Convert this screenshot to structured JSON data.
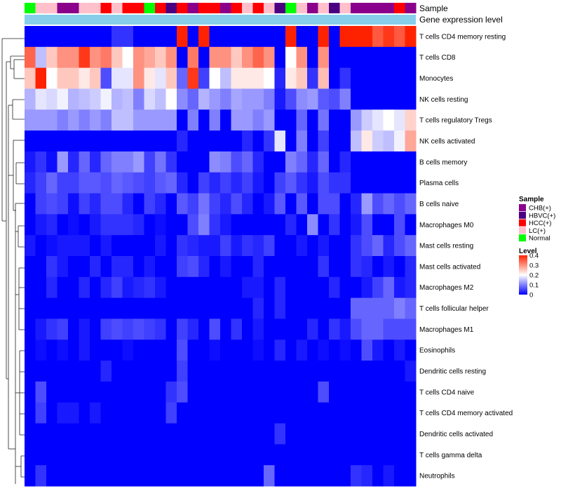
{
  "chart_data": {
    "type": "heatmap",
    "title": "",
    "annotation_track_labels": [
      "Sample",
      "Gene expression level"
    ],
    "sample_groups": [
      {
        "name": "CHB(+)",
        "color": "#8B008B"
      },
      {
        "name": "HBVC(+)",
        "color": "#4B0082"
      },
      {
        "name": "HCC(+)",
        "color": "#FF0000"
      },
      {
        "name": "LC(+)",
        "color": "#FFC0CB"
      },
      {
        "name": "Normal",
        "color": "#00FF00"
      }
    ],
    "sample_legend_title": "Sample",
    "level_legend_title": "Level",
    "level_ticks": [
      0.4,
      0.3,
      0.2,
      0.1,
      0
    ],
    "value_range": [
      0,
      0.4
    ],
    "gene_level_color": "#87CEEB",
    "samples": [
      "Normal",
      "LC(+)",
      "LC(+)",
      "CHB(+)",
      "CHB(+)",
      "LC(+)",
      "LC(+)",
      "HCC(+)",
      "LC(+)",
      "HCC(+)",
      "HCC(+)",
      "Normal",
      "HCC(+)",
      "HBVC(+)",
      "HCC(+)",
      "CHB(+)",
      "HCC(+)",
      "HCC(+)",
      "CHB(+)",
      "HCC(+)",
      "LC(+)",
      "HCC(+)",
      "LC(+)",
      "HBVC(+)",
      "Normal",
      "LC(+)",
      "CHB(+)",
      "LC(+)",
      "HBVC(+)",
      "LC(+)",
      "CHB(+)",
      "CHB(+)",
      "CHB(+)",
      "CHB(+)",
      "HCC(+)",
      "CHB(+)"
    ],
    "rows": [
      "T cells CD4 memory resting",
      "T cells CD8",
      "Monocytes",
      "NK cells resting",
      "T cells regulatory  Tregs",
      "NK cells activated",
      "B cells memory",
      "Plasma cells",
      "B cells naive",
      "Macrophages M0",
      "Mast cells resting",
      "Mast cells activated",
      "Macrophages M2",
      "T cells follicular helper",
      "Macrophages M1",
      "Eosinophils",
      "Dendritic cells resting",
      "T cells CD4 naive",
      "T cells CD4 memory activated",
      "Dendritic cells activated",
      "T cells gamma delta",
      "Neutrophils"
    ],
    "values": [
      [
        0,
        0,
        0,
        0,
        0,
        0,
        0,
        0,
        0.04,
        0.04,
        0,
        0,
        0,
        0,
        0.4,
        0,
        0.4,
        0,
        0,
        0,
        0,
        0,
        0,
        0,
        0.4,
        0,
        0,
        0.4,
        0,
        0.4,
        0.4,
        0.4,
        0.35,
        0.38,
        0.35,
        0.4
      ],
      [
        0.34,
        0.15,
        0.25,
        0.3,
        0.3,
        0.38,
        0.3,
        0.32,
        0.25,
        0.2,
        0.3,
        0.28,
        0.25,
        0.3,
        0,
        0.32,
        0,
        0.3,
        0.3,
        0.25,
        0.3,
        0.34,
        0.3,
        0,
        0.2,
        0.3,
        0,
        0.3,
        0,
        0,
        0,
        0,
        0,
        0,
        0,
        0
      ],
      [
        0.25,
        0.42,
        0.2,
        0.25,
        0.25,
        0.22,
        0.25,
        0.06,
        0.18,
        0.18,
        0.3,
        0.22,
        0.18,
        0.25,
        0.08,
        0.38,
        0.05,
        0.2,
        0.15,
        0.22,
        0.22,
        0.22,
        0.2,
        0.03,
        0.22,
        0.25,
        0.04,
        0.26,
        0,
        0.04,
        0,
        0,
        0,
        0,
        0,
        0
      ],
      [
        0.14,
        0.18,
        0.17,
        0.19,
        0.14,
        0.15,
        0.16,
        0.19,
        0.14,
        0.15,
        0.1,
        0.17,
        0.15,
        0.2,
        0.11,
        0.08,
        0.14,
        0.12,
        0.1,
        0.13,
        0.12,
        0.12,
        0.1,
        0.02,
        0.06,
        0.11,
        0.12,
        0.07,
        0.06,
        0.1,
        0,
        0,
        0,
        0,
        0,
        0
      ],
      [
        0.12,
        0.12,
        0.12,
        0.1,
        0.12,
        0.1,
        0.12,
        0.1,
        0.15,
        0.15,
        0.12,
        0.12,
        0.12,
        0.12,
        0,
        0.1,
        0,
        0.1,
        0,
        0.12,
        0.12,
        0.1,
        0.12,
        0,
        0,
        0.08,
        0,
        0.09,
        0,
        0,
        0.12,
        0.16,
        0.18,
        0.2,
        0.18,
        0.24
      ],
      [
        0,
        0,
        0,
        0,
        0,
        0,
        0,
        0,
        0,
        0,
        0,
        0,
        0,
        0,
        0.03,
        0,
        0,
        0,
        0,
        0,
        0.03,
        0,
        0.04,
        0.18,
        0,
        0.1,
        0,
        0.05,
        0,
        0,
        0.15,
        0.22,
        0.16,
        0.15,
        0.19,
        0.28
      ],
      [
        0.02,
        0.04,
        0.01,
        0.12,
        0.03,
        0.08,
        0.03,
        0.08,
        0.1,
        0.1,
        0.12,
        0.05,
        0.09,
        0.04,
        0,
        0,
        0,
        0.11,
        0.1,
        0.06,
        0.08,
        0.03,
        0,
        0,
        0.1,
        0.08,
        0.03,
        0.08,
        0,
        0.03,
        0,
        0,
        0,
        0,
        0,
        0
      ],
      [
        0.03,
        0.05,
        0.08,
        0.05,
        0.05,
        0.07,
        0.07,
        0.06,
        0.08,
        0.07,
        0.06,
        0.05,
        0.07,
        0.08,
        0.03,
        0,
        0.05,
        0.03,
        0.05,
        0.03,
        0.05,
        0.02,
        0,
        0.05,
        0.07,
        0.04,
        0.02,
        0.06,
        0.04,
        0.04,
        0,
        0,
        0,
        0,
        0,
        0
      ],
      [
        0,
        0.05,
        0.06,
        0.05,
        0.01,
        0.05,
        0.03,
        0.06,
        0.06,
        0.03,
        0,
        0.05,
        0.03,
        0,
        0.07,
        0.05,
        0.09,
        0.05,
        0.03,
        0.06,
        0.03,
        0,
        0.02,
        0.07,
        0,
        0.07,
        0,
        0.06,
        0.06,
        0,
        0.03,
        0.12,
        0.06,
        0.08,
        0.06,
        0.08
      ],
      [
        0,
        0.02,
        0.03,
        0,
        0.01,
        0,
        0.02,
        0.04,
        0.04,
        0.04,
        0.03,
        0,
        0.01,
        0,
        0,
        0.06,
        0.1,
        0.04,
        0.02,
        0,
        0,
        0,
        0,
        0,
        0.03,
        0,
        0.11,
        0,
        0.04,
        0,
        0.02,
        0.06,
        0,
        0,
        0.06,
        0
      ],
      [
        0.02,
        0,
        0.01,
        0.02,
        0.02,
        0.02,
        0,
        0.02,
        0,
        0,
        0,
        0,
        0.02,
        0,
        0.04,
        0.03,
        0.02,
        0.02,
        0.05,
        0.02,
        0.04,
        0.03,
        0.05,
        0,
        0,
        0.02,
        0,
        0.02,
        0,
        0,
        0.04,
        0.06,
        0.08,
        0.03,
        0.06,
        0.08
      ],
      [
        0,
        0,
        0.04,
        0.02,
        0,
        0,
        0.03,
        0,
        0.03,
        0.03,
        0,
        0.02,
        0,
        0,
        0.05,
        0.06,
        0.03,
        0,
        0.02,
        0,
        0,
        0.03,
        0,
        0,
        0,
        0,
        0,
        0.04,
        0,
        0,
        0.04,
        0.03,
        0,
        0.02,
        0,
        0.03
      ],
      [
        0,
        0,
        0.03,
        0,
        0,
        0.03,
        0,
        0.03,
        0.05,
        0.02,
        0.03,
        0.04,
        0.02,
        0,
        0,
        0,
        0,
        0,
        0,
        0,
        0.02,
        0.02,
        0,
        0.03,
        0,
        0,
        0,
        0,
        0.03,
        0,
        0,
        0.02,
        0.05,
        0.08,
        0.02,
        0.03
      ],
      [
        0,
        0,
        0,
        0,
        0,
        0,
        0,
        0,
        0,
        0,
        0,
        0,
        0,
        0,
        0,
        0,
        0,
        0,
        0,
        0,
        0,
        0.03,
        0,
        0.03,
        0,
        0,
        0,
        0,
        0,
        0,
        0.08,
        0.08,
        0.08,
        0.08,
        0.1,
        0.08
      ],
      [
        0,
        0.02,
        0.04,
        0.05,
        0,
        0.02,
        0,
        0.05,
        0.06,
        0.05,
        0.06,
        0.05,
        0.04,
        0,
        0.05,
        0.03,
        0,
        0.06,
        0,
        0.04,
        0,
        0.02,
        0,
        0,
        0,
        0,
        0.03,
        0,
        0.04,
        0.02,
        0.06,
        0.08,
        0.08,
        0.06,
        0.06,
        0.06
      ],
      [
        0,
        0.01,
        0,
        0.01,
        0,
        0.02,
        0,
        0,
        0,
        0.01,
        0,
        0,
        0,
        0,
        0.06,
        0,
        0,
        0.01,
        0,
        0,
        0,
        0.01,
        0,
        0.03,
        0,
        0.02,
        0,
        0.01,
        0,
        0.01,
        0,
        0.06,
        0.02,
        0,
        0.02,
        0
      ],
      [
        0,
        0,
        0,
        0,
        0,
        0,
        0,
        0.03,
        0,
        0,
        0,
        0,
        0,
        0,
        0.05,
        0,
        0,
        0,
        0,
        0,
        0,
        0,
        0,
        0,
        0,
        0,
        0,
        0,
        0,
        0,
        0,
        0,
        0,
        0,
        0,
        0.02
      ],
      [
        0,
        0.06,
        0,
        0,
        0,
        0,
        0,
        0,
        0,
        0,
        0,
        0,
        0,
        0.04,
        0.06,
        0,
        0,
        0,
        0,
        0,
        0,
        0,
        0,
        0,
        0,
        0,
        0,
        0.06,
        0,
        0,
        0,
        0,
        0,
        0,
        0,
        0
      ],
      [
        0,
        0.05,
        0,
        0.02,
        0.02,
        0,
        0.02,
        0,
        0,
        0,
        0,
        0,
        0,
        0.05,
        0,
        0,
        0,
        0,
        0,
        0,
        0,
        0,
        0,
        0,
        0,
        0,
        0,
        0,
        0,
        0,
        0,
        0,
        0,
        0,
        0,
        0
      ],
      [
        0,
        0,
        0,
        0,
        0,
        0,
        0,
        0,
        0,
        0,
        0,
        0,
        0,
        0,
        0,
        0,
        0,
        0,
        0,
        0,
        0,
        0,
        0,
        0.04,
        0,
        0,
        0,
        0,
        0,
        0,
        0,
        0,
        0,
        0,
        0,
        0
      ],
      [
        0,
        0,
        0,
        0,
        0,
        0,
        0,
        0,
        0,
        0,
        0,
        0,
        0,
        0,
        0,
        0,
        0,
        0,
        0,
        0,
        0,
        0,
        0,
        0,
        0,
        0,
        0,
        0,
        0,
        0,
        0,
        0,
        0,
        0,
        0,
        0
      ],
      [
        0,
        0.04,
        0,
        0,
        0,
        0,
        0,
        0,
        0,
        0,
        0,
        0,
        0,
        0,
        0,
        0,
        0,
        0,
        0,
        0,
        0,
        0,
        0.08,
        0,
        0,
        0,
        0,
        0,
        0,
        0,
        0.04,
        0.03,
        0,
        0.02,
        0,
        0
      ]
    ]
  }
}
